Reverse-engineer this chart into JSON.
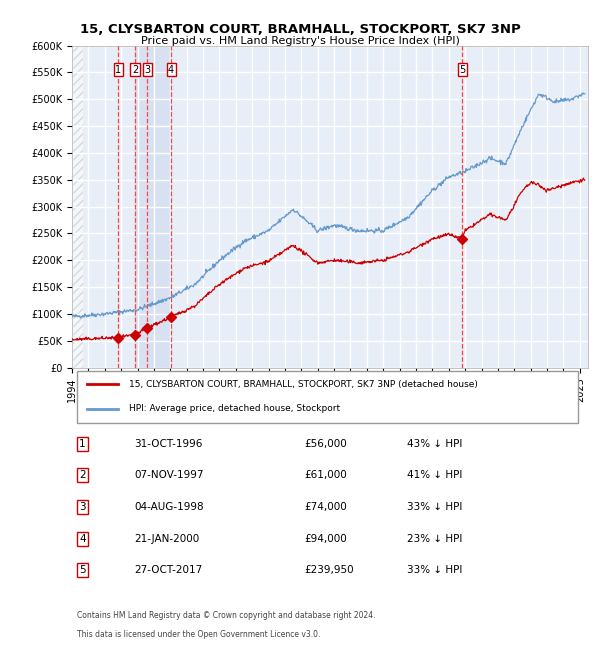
{
  "title1": "15, CLYSBARTON COURT, BRAMHALL, STOCKPORT, SK7 3NP",
  "title2": "Price paid vs. HM Land Registry's House Price Index (HPI)",
  "legend_label_red": "15, CLYSBARTON COURT, BRAMHALL, STOCKPORT, SK7 3NP (detached house)",
  "legend_label_blue": "HPI: Average price, detached house, Stockport",
  "footer1": "Contains HM Land Registry data © Crown copyright and database right 2024.",
  "footer2": "This data is licensed under the Open Government Licence v3.0.",
  "sales": [
    {
      "id": 1,
      "date_num": 1996.83,
      "price": 56000,
      "label": "31-OCT-1996",
      "pct": "43% ↓ HPI"
    },
    {
      "id": 2,
      "date_num": 1997.85,
      "price": 61000,
      "label": "07-NOV-1997",
      "pct": "41% ↓ HPI"
    },
    {
      "id": 3,
      "date_num": 1998.59,
      "price": 74000,
      "label": "04-AUG-1998",
      "pct": "33% ↓ HPI"
    },
    {
      "id": 4,
      "date_num": 2000.05,
      "price": 94000,
      "label": "21-JAN-2000",
      "pct": "23% ↓ HPI"
    },
    {
      "id": 5,
      "date_num": 2017.82,
      "price": 239950,
      "label": "27-OCT-2017",
      "pct": "33% ↓ HPI"
    }
  ],
  "hpi_color": "#6699cc",
  "price_color": "#cc0000",
  "background_color": "#e8eef8",
  "hatch_color": "#cccccc",
  "grid_color": "#ffffff",
  "vline_color": "#ff4444",
  "ylim": [
    0,
    600000
  ],
  "xlim_start": 1994.0,
  "xlim_end": 2025.5,
  "yticks": [
    0,
    50000,
    100000,
    150000,
    200000,
    250000,
    300000,
    350000,
    400000,
    450000,
    500000,
    550000,
    600000
  ],
  "xticks": [
    1994,
    1995,
    1996,
    1997,
    1998,
    1999,
    2000,
    2001,
    2002,
    2003,
    2004,
    2005,
    2006,
    2007,
    2008,
    2009,
    2010,
    2011,
    2012,
    2013,
    2014,
    2015,
    2016,
    2017,
    2018,
    2019,
    2020,
    2021,
    2022,
    2023,
    2024,
    2025
  ]
}
